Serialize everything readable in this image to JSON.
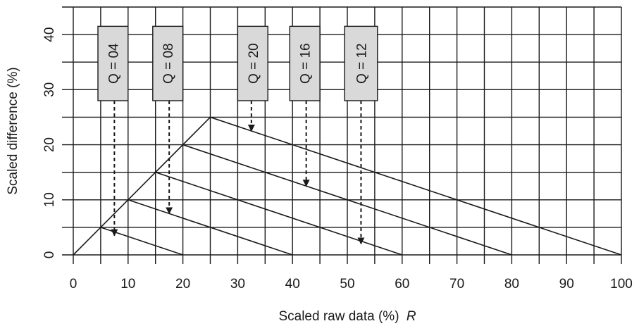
{
  "chart_data": {
    "type": "line",
    "xlabel": "Scaled raw data (%)",
    "xlabel_symbol": "R",
    "ylabel": "Scaled difference  (%)",
    "xlim": [
      0,
      100
    ],
    "ylim": [
      0,
      45
    ],
    "x_ticks": [
      0,
      10,
      20,
      30,
      40,
      50,
      60,
      70,
      80,
      90,
      100
    ],
    "y_ticks": [
      0,
      10,
      20,
      30,
      40
    ],
    "grid": true,
    "colors": {
      "line": "#1a1a1a",
      "grid": "#1a1a1a",
      "label_box": "#d9d9d9",
      "arrow": "#1a1a1a"
    },
    "envelope": {
      "points": [
        [
          0,
          0
        ],
        [
          25,
          25
        ]
      ]
    },
    "series": [
      {
        "label": "Q = 04",
        "peak": [
          5,
          5
        ],
        "end": [
          20,
          0
        ],
        "arrow_x": 7.5,
        "arrow_to_y": 3.5
      },
      {
        "label": "Q = 08",
        "peak": [
          10,
          10
        ],
        "end": [
          40,
          0
        ],
        "arrow_x": 17.5,
        "arrow_to_y": 7.5
      },
      {
        "label": "Q = 12",
        "peak": [
          15,
          15
        ],
        "end": [
          60,
          0
        ],
        "arrow_x": 52.5,
        "arrow_to_y": 2.0
      },
      {
        "label": "Q = 16",
        "peak": [
          20,
          20
        ],
        "end": [
          80,
          0
        ],
        "arrow_x": 42.5,
        "arrow_to_y": 12.5
      },
      {
        "label": "Q = 20",
        "peak": [
          25,
          25
        ],
        "end": [
          100,
          0
        ],
        "arrow_x": 32.5,
        "arrow_to_y": 22.5
      }
    ],
    "label_boxes": [
      {
        "label": "Q = 04",
        "x_range": [
          4.5,
          10
        ]
      },
      {
        "label": "Q = 08",
        "x_range": [
          14.5,
          20
        ]
      },
      {
        "label": "Q = 20",
        "x_range": [
          30,
          35.5
        ]
      },
      {
        "label": "Q = 16",
        "x_range": [
          39.5,
          45
        ]
      },
      {
        "label": "Q = 12",
        "x_range": [
          49.5,
          55.5
        ]
      }
    ],
    "label_box_y_range": [
      28,
      41.5
    ]
  }
}
